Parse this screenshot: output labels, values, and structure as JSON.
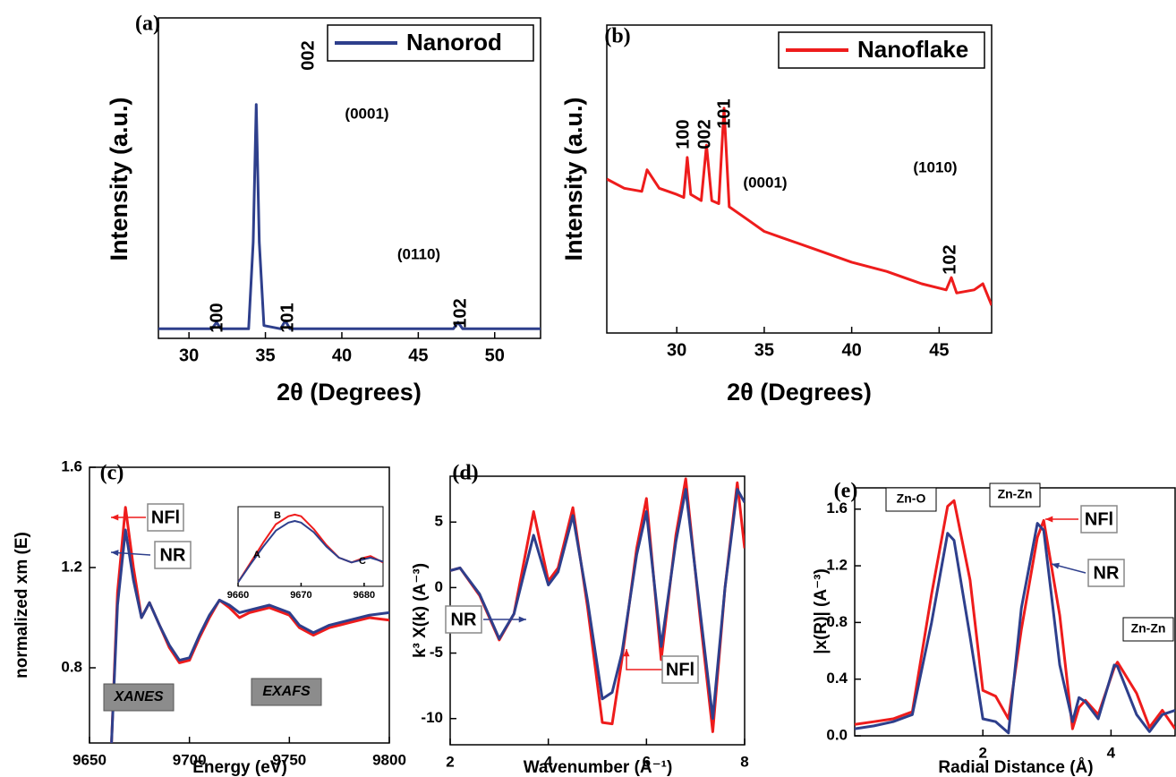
{
  "chart_data": [
    {
      "type": "line",
      "panel_label": "(a)",
      "xlabel": "2θ (Degrees)",
      "ylabel": "Intensity (a.u.)",
      "xlim": [
        28,
        53
      ],
      "xticks": [
        30,
        35,
        40,
        45,
        50
      ],
      "ylim": [
        0,
        100
      ],
      "legend": "upper right",
      "x": [
        28,
        30,
        31.5,
        31.8,
        32.1,
        33.9,
        34.2,
        34.4,
        34.6,
        34.9,
        36,
        36.3,
        36.6,
        40,
        45,
        47.3,
        47.6,
        47.9,
        50,
        53
      ],
      "series": [
        {
          "name": "Nanorod",
          "color": "#2e3f8c",
          "values": [
            3,
            3,
            3,
            5,
            3,
            3,
            30,
            73,
            30,
            4,
            3,
            5.5,
            3,
            3,
            3,
            3,
            5,
            3,
            3,
            3
          ]
        }
      ],
      "annotations": [
        "002",
        "100",
        "101",
        "102",
        "(0001)",
        "(0110)"
      ]
    },
    {
      "type": "line",
      "panel_label": "(b)",
      "xlabel": "2θ (Degrees)",
      "ylabel": "Intensity (a.u.)",
      "xlim": [
        26,
        48
      ],
      "xticks": [
        30,
        35,
        40,
        45
      ],
      "ylim": [
        0,
        100
      ],
      "legend": "upper right",
      "x": [
        26,
        27,
        28,
        28.3,
        29,
        30,
        30.4,
        30.6,
        30.8,
        31.4,
        31.7,
        32,
        32.4,
        32.7,
        33,
        34,
        35,
        36,
        38,
        40,
        42,
        44,
        45.4,
        45.7,
        46,
        47,
        47.5,
        48
      ],
      "series": [
        {
          "name": "Nanoflake",
          "color": "#ee1c1c",
          "values": [
            50,
            47,
            46,
            53,
            47,
            45,
            44,
            57,
            45,
            43,
            61,
            43,
            42,
            73,
            41,
            37,
            33,
            31,
            27,
            23,
            20,
            16,
            14,
            18,
            13,
            14,
            16,
            9
          ]
        }
      ],
      "annotations": [
        "100",
        "002",
        "101",
        "102",
        "(0001)",
        "(1010)"
      ]
    },
    {
      "type": "line",
      "panel_label": "(c)",
      "xlabel": "Energy (eV)",
      "ylabel": "normalized xm (E)",
      "xlim": [
        9650,
        9800
      ],
      "xticks": [
        9650,
        9700,
        9750,
        9800
      ],
      "ylim": [
        0.5,
        1.6
      ],
      "yticks": [
        0.8,
        1.2,
        1.6
      ],
      "x": [
        9661,
        9664,
        9668,
        9672,
        9676,
        9680,
        9685,
        9690,
        9695,
        9700,
        9705,
        9710,
        9715,
        9720,
        9725,
        9730,
        9740,
        9750,
        9755,
        9762,
        9770,
        9780,
        9790,
        9800
      ],
      "series": [
        {
          "name": "NFl",
          "color": "#ee1c1c",
          "values": [
            0.5,
            1.1,
            1.44,
            1.2,
            1.0,
            1.06,
            0.97,
            0.88,
            0.82,
            0.83,
            0.92,
            1.0,
            1.07,
            1.04,
            1.0,
            1.02,
            1.04,
            1.01,
            0.96,
            0.93,
            0.96,
            0.98,
            1.0,
            0.99
          ]
        },
        {
          "name": "NR",
          "color": "#2e3f8c",
          "values": [
            0.5,
            1.05,
            1.35,
            1.15,
            1.0,
            1.06,
            0.97,
            0.89,
            0.83,
            0.84,
            0.93,
            1.01,
            1.07,
            1.05,
            1.02,
            1.03,
            1.05,
            1.02,
            0.97,
            0.94,
            0.97,
            0.99,
            1.01,
            1.02
          ]
        }
      ],
      "annotations": [
        "XANES",
        "EXAFS"
      ]
    },
    {
      "type": "line",
      "panel_label": "(d)",
      "xlabel": "Wavenumber (A⁻¹)",
      "ylabel": "k³ X(k) (A⁻³)",
      "xlim": [
        2,
        8
      ],
      "xticks": [
        2,
        4,
        6,
        8
      ],
      "ylim": [
        -12,
        8.5
      ],
      "yticks": [
        -10,
        -5,
        0,
        5
      ],
      "x": [
        2,
        2.2,
        2.6,
        3,
        3.3,
        3.7,
        4,
        4.2,
        4.5,
        4.8,
        5.1,
        5.3,
        5.5,
        5.8,
        6,
        6.3,
        6.6,
        6.8,
        7.1,
        7.35,
        7.6,
        7.85,
        8
      ],
      "series": [
        {
          "name": "NFl",
          "color": "#ee1c1c",
          "values": [
            1.3,
            1.5,
            -0.6,
            -4,
            -2,
            5.8,
            0.5,
            1.5,
            6.1,
            -1.5,
            -10.3,
            -10.4,
            -5.5,
            3,
            6.8,
            -5.5,
            4,
            8.3,
            -2.5,
            -11,
            0,
            8,
            3
          ]
        },
        {
          "name": "NR",
          "color": "#2e3f8c",
          "values": [
            1.3,
            1.5,
            -0.5,
            -3.9,
            -2,
            4,
            0.2,
            1.2,
            5.5,
            -1,
            -8.5,
            -8,
            -5,
            2.5,
            5.8,
            -4.5,
            3.5,
            7.5,
            -2,
            -10,
            0,
            7.5,
            6.5
          ]
        }
      ]
    },
    {
      "type": "line",
      "panel_label": "(e)",
      "xlabel": "Radial Distance (Å)",
      "ylabel": "|x(R)| (A⁻³)",
      "xlim": [
        0,
        5
      ],
      "xticks": [
        2,
        4
      ],
      "ylim": [
        0,
        1.75
      ],
      "yticks": [
        {
          "value": 0,
          "label": "0.0"
        },
        0.4,
        0.8,
        1.2,
        1.6
      ],
      "x": [
        0,
        0.3,
        0.6,
        0.9,
        1.2,
        1.45,
        1.55,
        1.8,
        2.0,
        2.2,
        2.4,
        2.6,
        2.85,
        2.95,
        3.2,
        3.4,
        3.5,
        3.6,
        3.8,
        4.05,
        4.1,
        4.4,
        4.6,
        4.8,
        5
      ],
      "series": [
        {
          "name": "NFl",
          "color": "#ee1c1c",
          "values": [
            0.08,
            0.1,
            0.12,
            0.17,
            1.0,
            1.62,
            1.66,
            1.1,
            0.32,
            0.28,
            0.12,
            0.75,
            1.4,
            1.52,
            0.85,
            0.05,
            0.2,
            0.25,
            0.15,
            0.48,
            0.52,
            0.3,
            0.06,
            0.18,
            0.05
          ]
        },
        {
          "name": "NR",
          "color": "#2e3f8c",
          "values": [
            0.05,
            0.07,
            0.1,
            0.15,
            0.8,
            1.43,
            1.38,
            0.7,
            0.12,
            0.1,
            0.02,
            0.9,
            1.5,
            1.45,
            0.5,
            0.1,
            0.27,
            0.24,
            0.12,
            0.5,
            0.49,
            0.15,
            0.03,
            0.15,
            0.18
          ]
        }
      ],
      "annotations": [
        "Zn-O",
        "Zn-Zn",
        "Zn-Zn"
      ]
    },
    {
      "type": "line",
      "xlim": [
        9660,
        9683
      ],
      "xticks": [
        9660,
        9670,
        9680
      ],
      "ylim": [
        0,
        1
      ],
      "x": [
        9660,
        9662,
        9664,
        9666,
        9668,
        9669,
        9670,
        9672,
        9674,
        9676,
        9678,
        9680,
        9681,
        9683
      ],
      "series": [
        {
          "color": "#ee1c1c",
          "values": [
            0.05,
            0.3,
            0.55,
            0.78,
            0.88,
            0.9,
            0.88,
            0.72,
            0.52,
            0.36,
            0.3,
            0.36,
            0.38,
            0.3
          ]
        },
        {
          "color": "#2e3f8c",
          "values": [
            0.05,
            0.28,
            0.5,
            0.7,
            0.8,
            0.82,
            0.8,
            0.68,
            0.5,
            0.36,
            0.3,
            0.34,
            0.36,
            0.31
          ]
        }
      ],
      "annotations": [
        "A",
        "B",
        "C"
      ]
    }
  ]
}
